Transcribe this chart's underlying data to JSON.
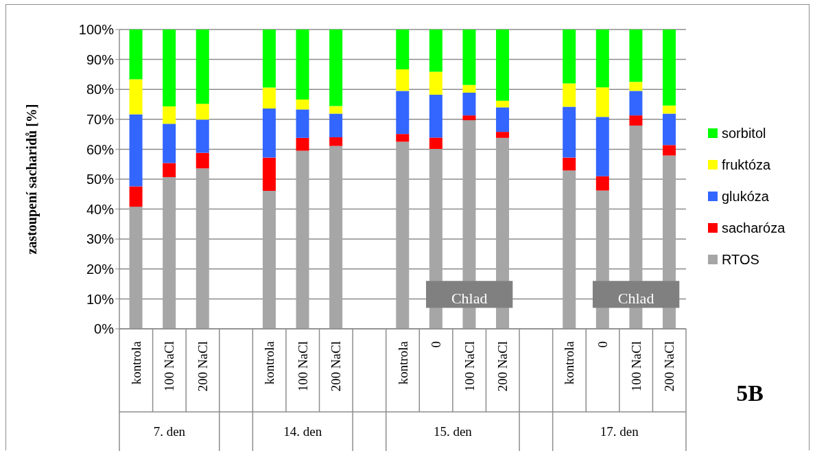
{
  "chart_data": {
    "type": "bar",
    "stacked": true,
    "ylabel": "zastoupení sacharidů [%]",
    "categories": [
      "kontrola",
      "100 NaCl",
      "200 NaCl",
      null,
      "kontrola",
      "100 NaCl",
      "200 NaCl",
      null,
      "kontrola",
      "0",
      "100 NaCl",
      "200 NaCl",
      null,
      "kontrola",
      "0",
      "100 NaCl",
      "200 NaCl"
    ],
    "series": [
      {
        "name": "RTOS",
        "color": "#a6a6a6",
        "values": [
          40.8,
          50.7,
          53.6,
          null,
          46.1,
          59.5,
          61.1,
          null,
          62.5,
          60.1,
          69.7,
          63.8,
          null,
          52.9,
          46.2,
          67.9,
          57.9
        ]
      },
      {
        "name": "sacharóza",
        "color": "#ff0000",
        "values": [
          6.8,
          4.7,
          5.2,
          null,
          11.1,
          4.3,
          2.9,
          null,
          2.6,
          3.8,
          1.6,
          2.0,
          null,
          4.3,
          4.8,
          3.4,
          3.5
        ]
      },
      {
        "name": "glukóza",
        "color": "#3366ff",
        "values": [
          24.1,
          13.1,
          11.1,
          null,
          16.4,
          9.5,
          7.9,
          null,
          14.4,
          14.3,
          7.6,
          8.2,
          null,
          17.0,
          19.8,
          8.2,
          10.5
        ]
      },
      {
        "name": "fruktóza",
        "color": "#ffff00",
        "values": [
          11.7,
          5.8,
          5.3,
          null,
          7.0,
          3.3,
          2.5,
          null,
          7.2,
          7.7,
          2.6,
          2.2,
          null,
          7.8,
          9.9,
          3.0,
          2.7
        ]
      },
      {
        "name": "sorbitol",
        "color": "#00ff00",
        "values": [
          16.6,
          25.7,
          24.8,
          null,
          19.4,
          23.4,
          25.6,
          null,
          13.3,
          14.1,
          18.5,
          23.8,
          null,
          18.0,
          19.3,
          17.5,
          25.4
        ]
      }
    ],
    "ylim": [
      0,
      100
    ],
    "yticks": [
      {
        "value": 0,
        "label": "0%"
      },
      {
        "value": 10,
        "label": "10%"
      },
      {
        "value": 20,
        "label": "20%"
      },
      {
        "value": 30,
        "label": "30%"
      },
      {
        "value": 40,
        "label": "40%"
      },
      {
        "value": 50,
        "label": "50%"
      },
      {
        "value": 60,
        "label": "60%"
      },
      {
        "value": 70,
        "label": "70%"
      },
      {
        "value": 80,
        "label": "80%"
      },
      {
        "value": 90,
        "label": "90%"
      },
      {
        "value": 100,
        "label": "100%"
      }
    ],
    "grid": "y",
    "legend": "right",
    "annotations": [
      "7. den",
      "14. den",
      "15. den",
      "17. den",
      "Chlad",
      "Chlad",
      "5B"
    ]
  }
}
